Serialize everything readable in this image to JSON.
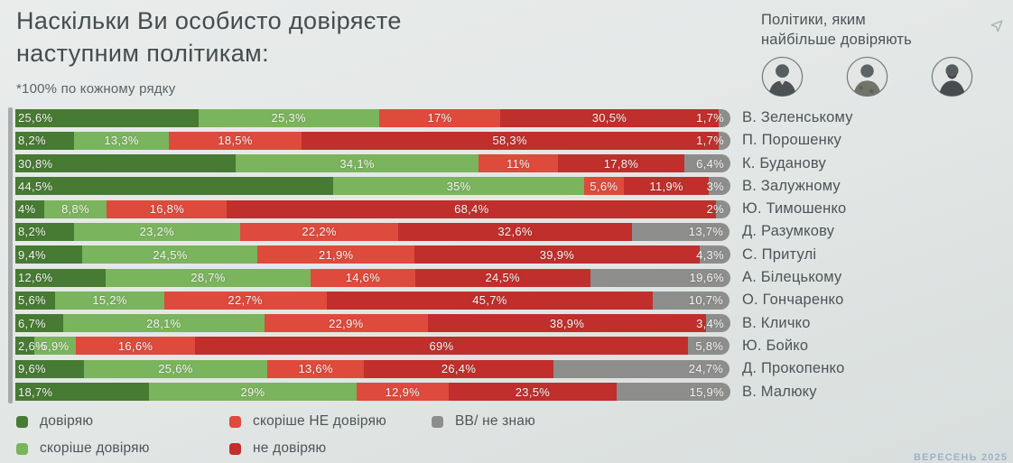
{
  "title": "Наскільки Ви особисто довіряєте наступним політикам:",
  "note": "*100% по кожному рядку",
  "right_panel": {
    "header": "Політики, яким найбільше довіряють",
    "avatars": [
      "politician-photo-1",
      "politician-photo-2",
      "politician-photo-3"
    ]
  },
  "icons": {
    "cursor": "cursor-arrow-icon"
  },
  "footer": "ВЕРЕСЕНЬ 2025",
  "colors": {
    "trust": "#477a33",
    "rather_trust": "#7ab45c",
    "rather_not_trust": "#de4a3c",
    "not_trust": "#c02f2c",
    "dont_know": "#8d8e8c",
    "background": "#e2e6e5",
    "value_text": "#f2f3f1"
  },
  "legend": [
    {
      "label": "довіряю",
      "color": "#477a33"
    },
    {
      "label": "скоріше довіряю",
      "color": "#7ab45c"
    },
    {
      "label": "скоріше НЕ довіряю",
      "color": "#de4a3c"
    },
    {
      "label": "не довіряю",
      "color": "#c02f2c"
    },
    {
      "label": "ВВ/ не знаю",
      "color": "#8d8e8c"
    }
  ],
  "chart_data": {
    "type": "bar",
    "orientation": "horizontal",
    "stacked": true,
    "unit": "%",
    "row_total": 100,
    "title": "Наскільки Ви особисто довіряєте наступним політикам:",
    "series_names": [
      "довіряю",
      "скоріше довіряю",
      "скоріше НЕ довіряю",
      "не довіряю",
      "ВВ/ не знаю"
    ],
    "series_colors": [
      "#477a33",
      "#7ab45c",
      "#de4a3c",
      "#c02f2c",
      "#8d8e8c"
    ],
    "categories": [
      "В. Зеленському",
      "П. Порошенку",
      "К. Буданову",
      "В. Залужному",
      "Ю. Тимошенко",
      "Д. Разумкову",
      "С. Притулі",
      "А. Білецькому",
      "О. Гончаренко",
      "В. Кличко",
      "Ю. Бойко",
      "Д. Прокопенко",
      "В. Малюку"
    ],
    "values": [
      [
        25.6,
        25.3,
        17,
        30.5,
        1.7
      ],
      [
        8.2,
        13.3,
        18.5,
        58.3,
        1.7
      ],
      [
        30.8,
        34.1,
        11,
        17.8,
        6.4
      ],
      [
        44.5,
        35,
        5.6,
        11.9,
        3
      ],
      [
        4,
        8.8,
        16.8,
        68.4,
        2
      ],
      [
        8.2,
        23.2,
        22.2,
        32.6,
        13.7
      ],
      [
        9.4,
        24.5,
        21.9,
        39.9,
        4.3
      ],
      [
        12.6,
        28.7,
        14.6,
        24.5,
        19.6
      ],
      [
        5.6,
        15.2,
        22.7,
        45.7,
        10.7
      ],
      [
        6.7,
        28.1,
        22.9,
        38.9,
        3.4
      ],
      [
        2.6,
        5.9,
        16.6,
        69,
        5.8
      ],
      [
        9.6,
        25.6,
        13.6,
        26.4,
        24.7
      ],
      [
        18.7,
        29,
        12.9,
        23.5,
        15.9
      ]
    ]
  }
}
